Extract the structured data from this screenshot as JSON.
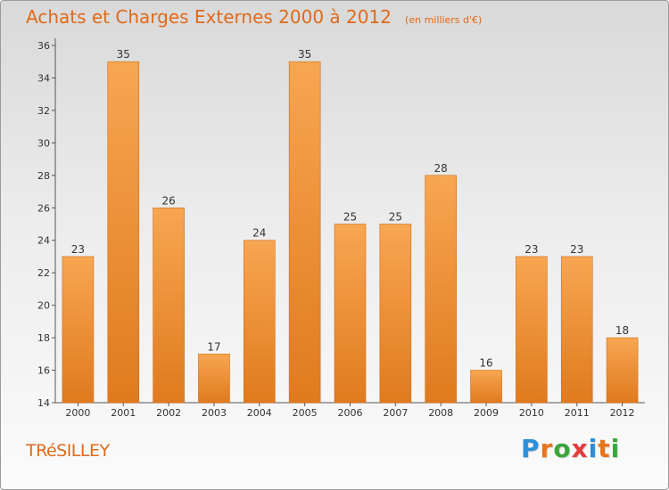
{
  "header": {
    "title": "Achats et Charges Externes 2000 à 2012",
    "subtitle": "(en milliers d'€)"
  },
  "footer": {
    "town": "TRéSILLEY",
    "logo": "Proxiti"
  },
  "colors": {
    "title": "#e06a1a",
    "bar_top": "#f7a651",
    "bar_bottom": "#e07a1e",
    "logo_letters": [
      "#2a8fd8",
      "#e8751a",
      "#3aa63a",
      "#e23c3c",
      "#2a8fd8",
      "#e8751a",
      "#3aa63a"
    ]
  },
  "chart_data": {
    "type": "bar",
    "categories": [
      "2000",
      "2001",
      "2002",
      "2003",
      "2004",
      "2005",
      "2006",
      "2007",
      "2008",
      "2009",
      "2010",
      "2011",
      "2012"
    ],
    "values": [
      23,
      35,
      26,
      17,
      24,
      35,
      25,
      25,
      28,
      16,
      23,
      23,
      18
    ],
    "data_labels": [
      "23",
      "35",
      "26",
      "17",
      "24",
      "35",
      "25",
      "25",
      "28",
      "16",
      "23",
      "23",
      "18"
    ],
    "yticks": [
      14,
      16,
      18,
      20,
      22,
      24,
      26,
      28,
      30,
      32,
      34,
      36
    ],
    "ylim": [
      14,
      36
    ],
    "title": "Achats et Charges Externes 2000 à 2012",
    "xlabel": "",
    "ylabel": "",
    "grid": false,
    "legend": "none"
  }
}
